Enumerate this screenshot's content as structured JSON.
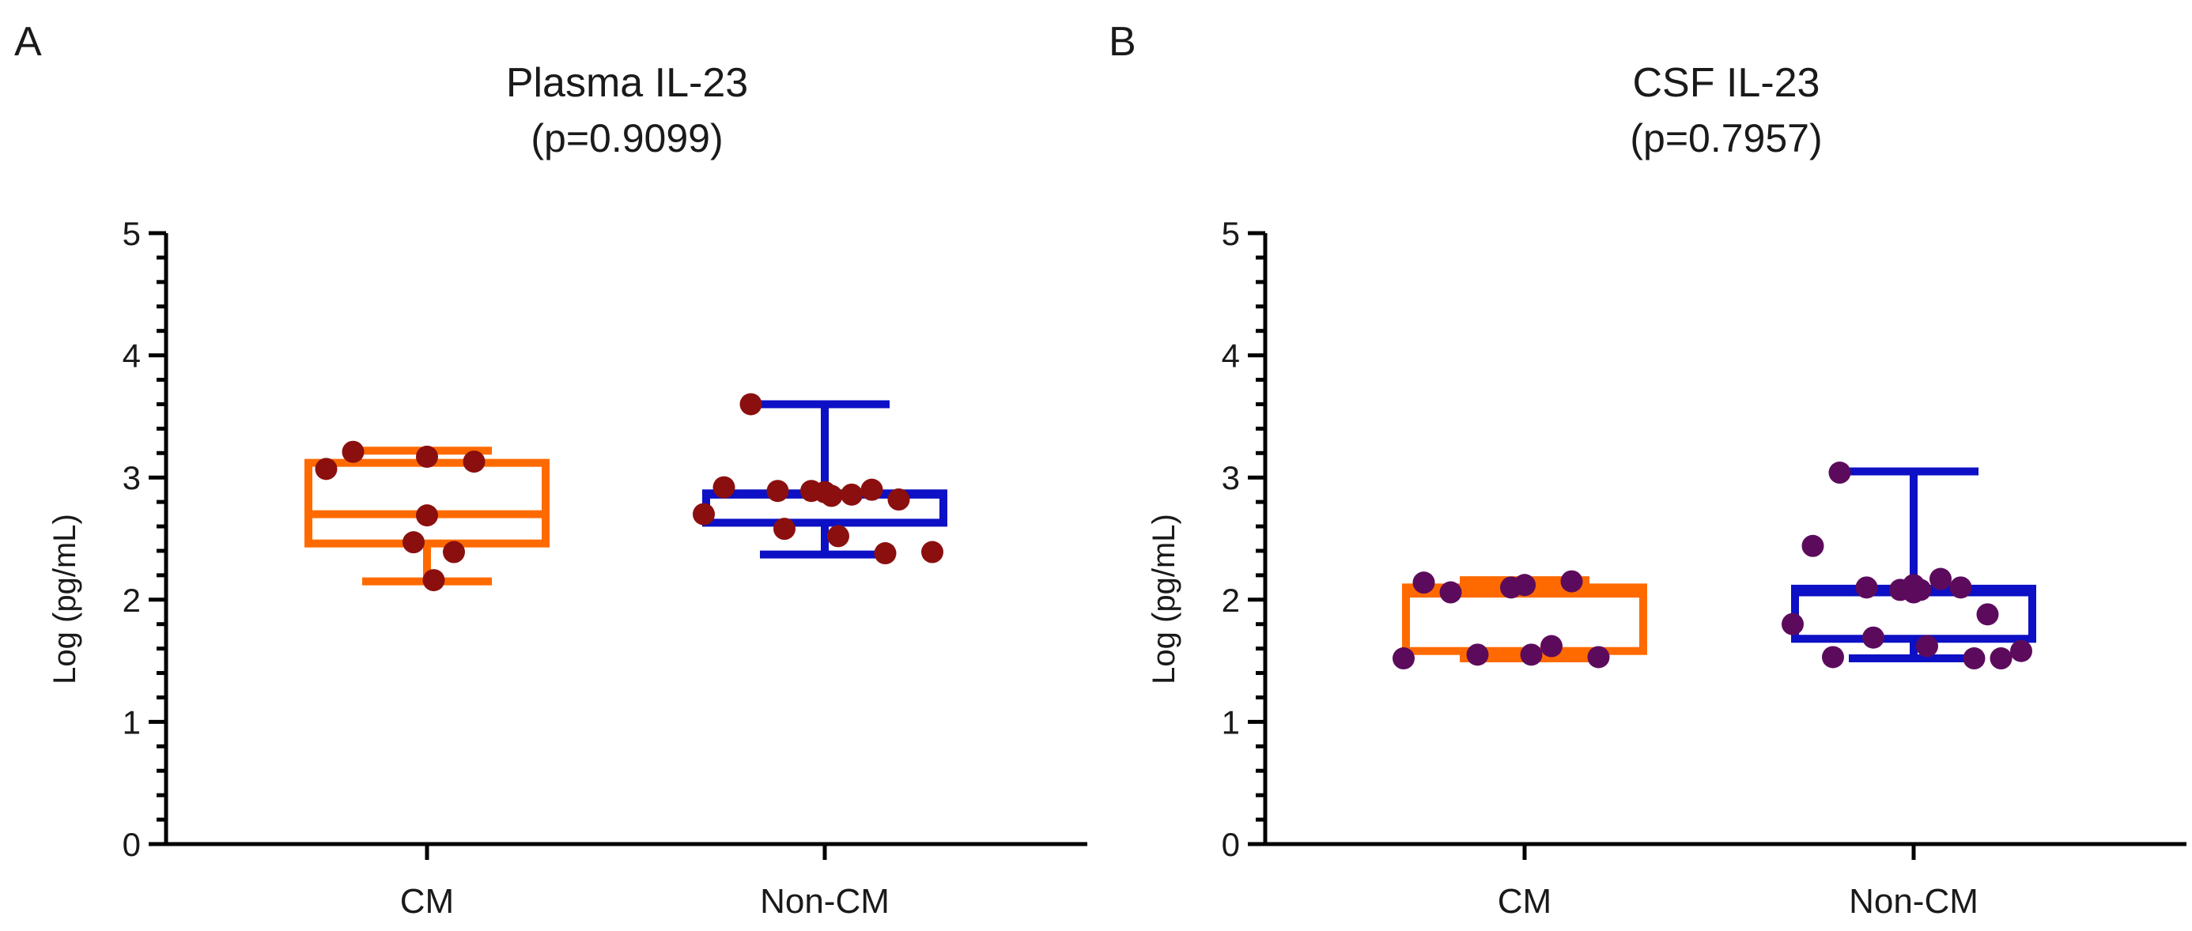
{
  "figure": {
    "panels": [
      {
        "letter": "A",
        "title": "Plasma IL-23",
        "subtitle": "(p=0.9099)"
      },
      {
        "letter": "B",
        "title": "CSF IL-23",
        "subtitle": "(p=0.7957)"
      }
    ]
  },
  "chart_data": [
    {
      "type": "box",
      "title": "Plasma IL-23",
      "subtitle": "(p=0.9099)",
      "ylabel": "Log (pg/mL)",
      "xlabel": "",
      "ylim": [
        0,
        5
      ],
      "yticks": [
        "0",
        "1",
        "2",
        "3",
        "4",
        "5"
      ],
      "categories": [
        "CM",
        "Non-CM"
      ],
      "groups": [
        {
          "name": "CM",
          "color": "#ff6a00",
          "box": {
            "min": 2.15,
            "q1": 2.46,
            "median": 2.7,
            "q3": 3.12,
            "max": 3.22
          },
          "points": [
            3.21,
            3.07,
            3.17,
            3.13,
            2.69,
            2.47,
            2.39,
            2.16
          ]
        },
        {
          "name": "Non-CM",
          "color": "#0d10c4",
          "box": {
            "min": 2.37,
            "q1": 2.63,
            "median": 2.86,
            "q3": 2.87,
            "max": 3.6
          },
          "points": [
            3.6,
            2.92,
            2.88,
            2.9,
            2.88,
            2.89,
            2.86,
            2.85,
            2.89,
            2.82,
            2.7,
            2.58,
            2.52,
            2.39,
            2.38
          ]
        }
      ],
      "point_color": "#8b0f0f",
      "grid": false
    },
    {
      "type": "box",
      "title": "CSF IL-23",
      "subtitle": "(p=0.7957)",
      "ylabel": "Log (pg/mL)",
      "xlabel": "",
      "ylim": [
        0,
        5
      ],
      "yticks": [
        "0",
        "1",
        "2",
        "3",
        "4",
        "5"
      ],
      "categories": [
        "CM",
        "Non-CM"
      ],
      "groups": [
        {
          "name": "CM",
          "color": "#ff6a00",
          "box": {
            "min": 1.52,
            "q1": 1.58,
            "median": 2.05,
            "q3": 2.1,
            "max": 2.16
          },
          "points": [
            2.06,
            2.14,
            2.12,
            2.15,
            2.12,
            2.1,
            1.62,
            1.55,
            1.55,
            1.53,
            1.52
          ]
        },
        {
          "name": "Non-CM",
          "color": "#0d10c4",
          "box": {
            "min": 1.52,
            "q1": 1.68,
            "median": 2.06,
            "q3": 2.09,
            "max": 3.05
          },
          "points": [
            3.04,
            2.44,
            2.12,
            2.1,
            2.06,
            2.08,
            2.17,
            2.08,
            2.1,
            1.88,
            1.8,
            1.69,
            1.62,
            1.58,
            1.52,
            1.53,
            1.52
          ]
        }
      ],
      "point_color": "#5c0b5c",
      "grid": false
    }
  ]
}
